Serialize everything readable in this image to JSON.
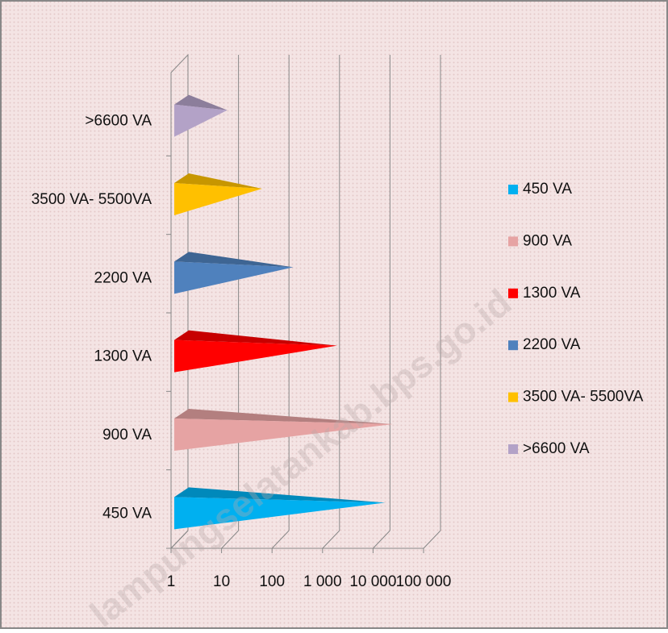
{
  "chart_data": {
    "type": "bar",
    "categories": [
      "450 VA",
      "900 VA",
      "1300 VA",
      "2200 VA",
      "3500 VA- 5500VA",
      ">6600 VA"
    ],
    "values": [
      12000,
      17000,
      1340,
      183,
      44,
      9
    ],
    "colors": [
      "#00b0f0",
      "#e6a3a3",
      "#ff0000",
      "#4f81bd",
      "#ffc000",
      "#b3a2c7"
    ],
    "xscale": "log",
    "xlim": [
      1,
      100000
    ],
    "xticks": [
      1,
      10,
      100,
      {
        "value": 1000,
        "label": "1 000"
      },
      {
        "value": 10000,
        "label": "10 000"
      },
      {
        "value": 100000,
        "label": "100 000"
      }
    ],
    "grid": true,
    "legend": "right",
    "watermark": "lampungselatankab.bps.go.id"
  }
}
